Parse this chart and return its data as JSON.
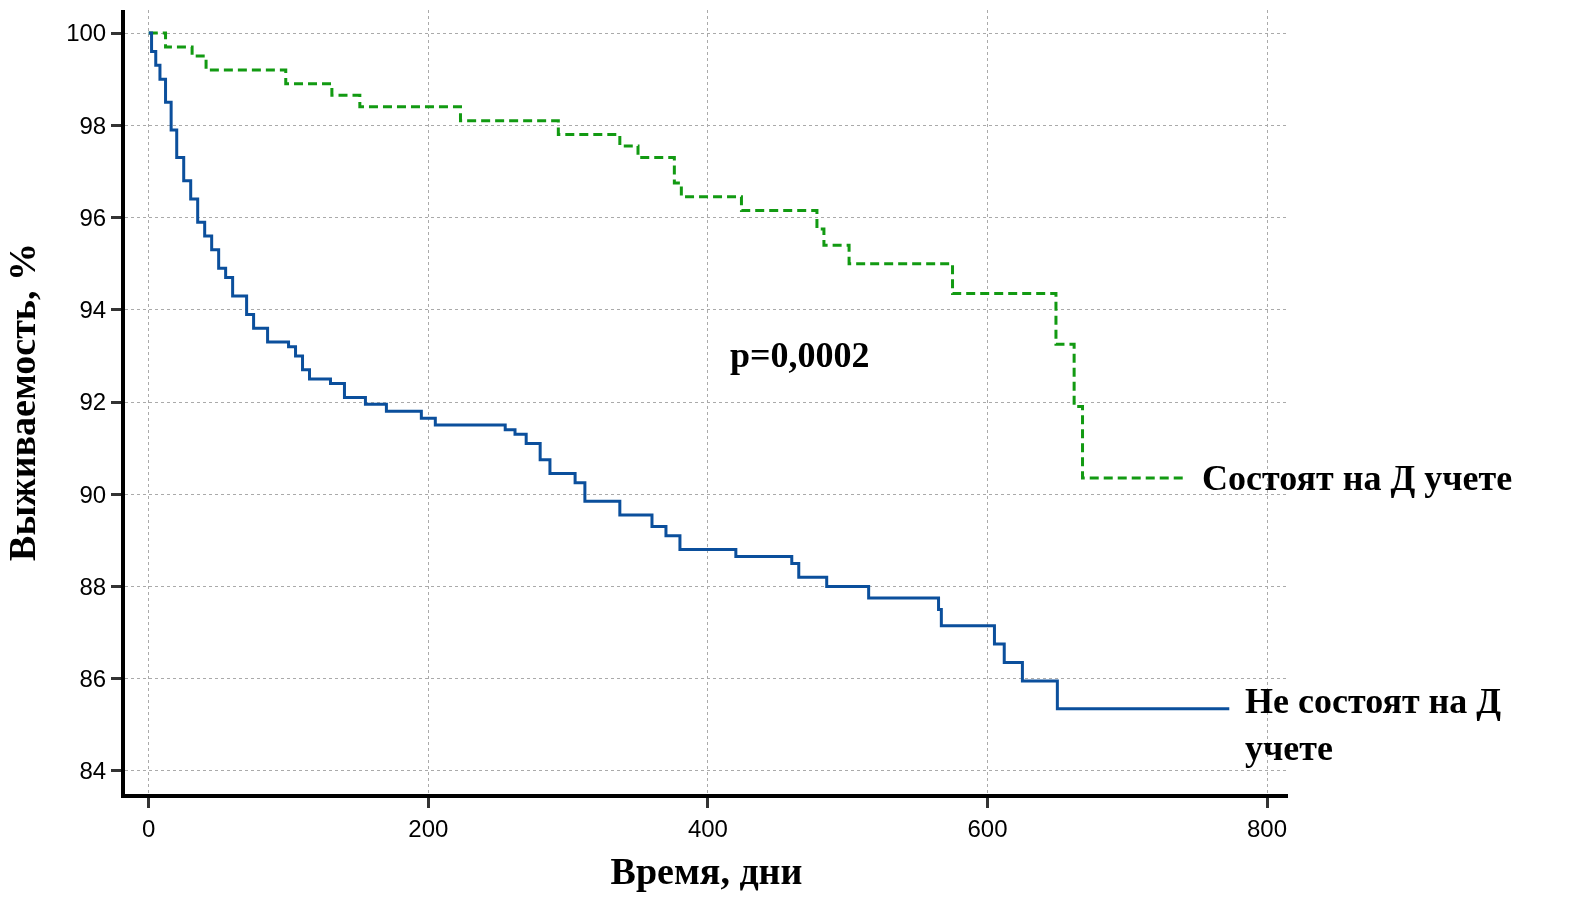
{
  "chart_data": {
    "type": "step",
    "xlabel": "Время, дни",
    "ylabel": "Выживаемость, %",
    "xlim": [
      -17,
      815
    ],
    "ylim": [
      83.5,
      100.5
    ],
    "xticks": [
      0,
      200,
      400,
      600,
      800
    ],
    "yticks": [
      84,
      86,
      88,
      90,
      92,
      94,
      96,
      98,
      100
    ],
    "grid": true,
    "legend": false,
    "marker": "none",
    "annotations": [
      "p=0,0002"
    ],
    "series": [
      {
        "name": "Состоят на Д учете",
        "color": "#129a12",
        "line_style": "dashed",
        "x": [
          0,
          12,
          31,
          41,
          98,
          131,
          151,
          223,
          293,
          337,
          350,
          376,
          381,
          424,
          478,
          483,
          501,
          575,
          649,
          662,
          668,
          742
        ],
        "values": [
          100,
          99.7,
          99.5,
          99.2,
          98.9,
          98.65,
          98.4,
          98.1,
          97.8,
          97.55,
          97.3,
          96.75,
          96.45,
          96.15,
          95.75,
          95.4,
          95.0,
          94.35,
          93.25,
          91.9,
          90.35,
          90.35
        ]
      },
      {
        "name": "Не состоят на Д учете",
        "color": "#0b4f9c",
        "line_style": "solid",
        "x": [
          0,
          2,
          5,
          8,
          12,
          16,
          20,
          25,
          30,
          35,
          40,
          45,
          50,
          55,
          60,
          70,
          75,
          85,
          100,
          105,
          110,
          115,
          130,
          140,
          155,
          170,
          195,
          205,
          255,
          262,
          270,
          280,
          287,
          305,
          312,
          337,
          360,
          370,
          380,
          420,
          460,
          465,
          485,
          515,
          565,
          567,
          605,
          612,
          625,
          650,
          773
        ],
        "values": [
          100,
          99.6,
          99.3,
          99.0,
          98.5,
          97.9,
          97.3,
          96.8,
          96.4,
          95.9,
          95.6,
          95.3,
          94.9,
          94.7,
          94.3,
          93.9,
          93.6,
          93.3,
          93.2,
          93.0,
          92.7,
          92.5,
          92.4,
          92.1,
          91.95,
          91.8,
          91.65,
          91.5,
          91.4,
          91.3,
          91.1,
          90.75,
          90.45,
          90.25,
          89.85,
          89.55,
          89.3,
          89.1,
          88.8,
          88.65,
          88.5,
          88.2,
          88.0,
          87.75,
          87.5,
          87.15,
          86.75,
          86.35,
          85.95,
          85.35,
          85.35
        ]
      }
    ]
  }
}
